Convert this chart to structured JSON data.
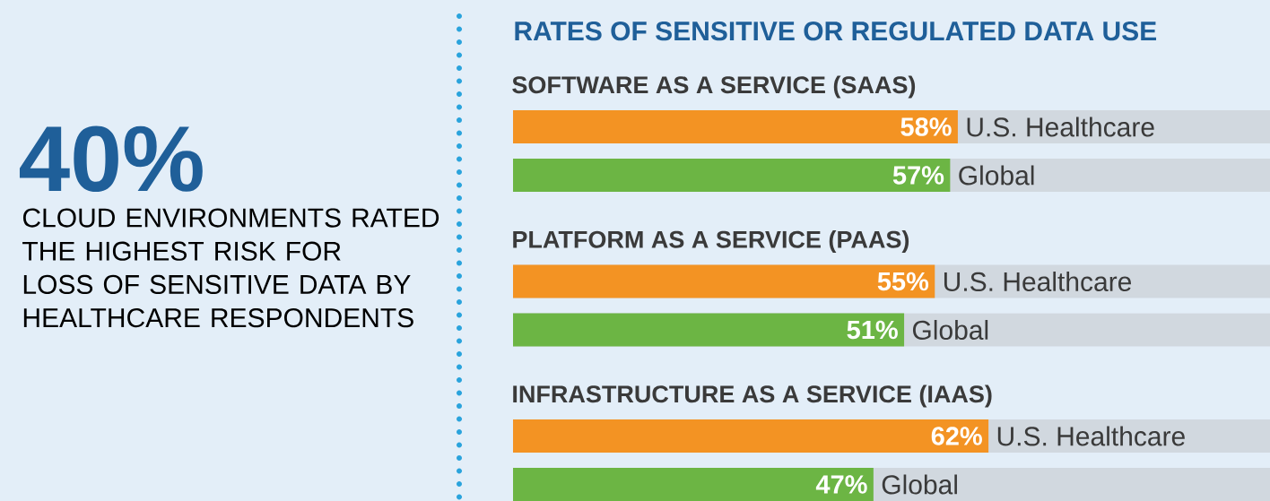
{
  "chart_data": [
    {
      "type": "other",
      "title": "40%",
      "subtitle": "CLOUD ENVIRONMENTS RATED THE HIGHEST RISK FOR LOSS OF  SENSITIVE DATA BY HEALTHCARE RESPONDENTS"
    },
    {
      "type": "bar",
      "orientation": "horizontal",
      "title": "RATES OF SENSITIVE OR REGULATED DATA USE",
      "subtitle": "SOFTWARE AS A SERVICE (SAAS)",
      "categories": [
        null
      ],
      "tick_labels": false,
      "series": [
        {
          "name": "U.S. Healthcare",
          "color": "#f39323",
          "values": [
            58
          ],
          "value_labels": [
            "58%"
          ]
        },
        {
          "name": "Global",
          "color": "#6cb544",
          "values": [
            57
          ],
          "value_labels": [
            "57%"
          ]
        }
      ]
    },
    {
      "type": "bar",
      "orientation": "horizontal",
      "title": "PLATFORM AS A SERVICE (PAAS)",
      "categories": [
        null
      ],
      "tick_labels": false,
      "series": [
        {
          "name": "U.S. Healthcare",
          "color": "#f39323",
          "values": [
            55
          ],
          "value_labels": [
            "55%"
          ]
        },
        {
          "name": "Global",
          "color": "#6cb544",
          "values": [
            51
          ],
          "value_labels": [
            "51%"
          ]
        }
      ]
    },
    {
      "type": "bar",
      "orientation": "horizontal",
      "title": "INFRASTRUCTURE AS A SERVICE (IAAS)",
      "categories": [
        null
      ],
      "tick_labels": false,
      "series": [
        {
          "name": "U.S. Healthcare",
          "color": "#f39323",
          "values": [
            62
          ],
          "value_labels": [
            "62%"
          ]
        },
        {
          "name": "Global",
          "color": "#6cb544",
          "values": [
            47
          ],
          "value_labels": [
            "47%"
          ]
        }
      ]
    }
  ]
}
